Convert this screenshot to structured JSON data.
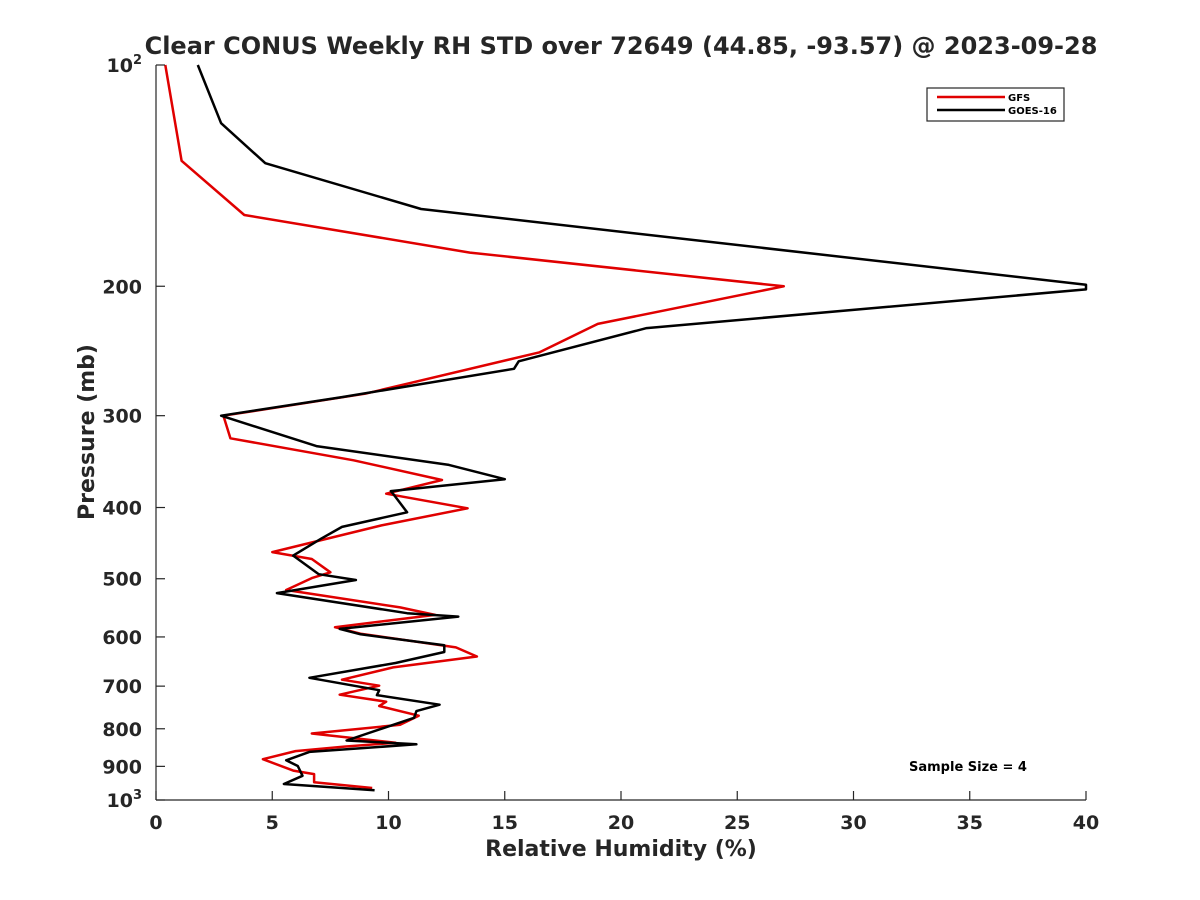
{
  "chart_data": {
    "type": "line",
    "title": "Clear CONUS Weekly RH STD over 72649 (44.85, -93.57) @ 2023-09-28",
    "xlabel": "Relative Humidity (%)",
    "ylabel": "Pressure (mb)",
    "xlim": [
      0,
      40
    ],
    "ylim": [
      100,
      1000
    ],
    "y_scale": "log",
    "y_reversed": true,
    "x_ticks": [
      0,
      5,
      10,
      15,
      20,
      25,
      30,
      35,
      40
    ],
    "y_ticks": [
      {
        "value": 100,
        "label": "10",
        "exp": "2"
      },
      {
        "value": 200,
        "label": "200"
      },
      {
        "value": 300,
        "label": "300"
      },
      {
        "value": 400,
        "label": "400"
      },
      {
        "value": 500,
        "label": "500"
      },
      {
        "value": 600,
        "label": "600"
      },
      {
        "value": 700,
        "label": "700"
      },
      {
        "value": 800,
        "label": "800"
      },
      {
        "value": 900,
        "label": "900"
      },
      {
        "value": 1000,
        "label": "10",
        "exp": "3"
      }
    ],
    "grid": false,
    "legend_position": "top-right",
    "annotation": "Sample Size = 4",
    "series": [
      {
        "name": "GFS",
        "color": "#e00000",
        "points": [
          [
            0.4,
            100
          ],
          [
            1.1,
            135
          ],
          [
            3.8,
            160
          ],
          [
            13.5,
            180
          ],
          [
            27.0,
            200
          ],
          [
            19.0,
            225
          ],
          [
            16.5,
            246
          ],
          [
            9.0,
            280
          ],
          [
            2.9,
            300
          ],
          [
            3.2,
            322
          ],
          [
            8.5,
            345
          ],
          [
            12.3,
            367
          ],
          [
            9.9,
            383
          ],
          [
            13.4,
            401
          ],
          [
            9.7,
            423
          ],
          [
            5.0,
            460
          ],
          [
            6.7,
            470
          ],
          [
            7.5,
            490
          ],
          [
            6.7,
            499
          ],
          [
            5.6,
            518
          ],
          [
            10.5,
            547
          ],
          [
            12.0,
            560
          ],
          [
            7.7,
            582
          ],
          [
            8.8,
            594
          ],
          [
            12.9,
            620
          ],
          [
            13.8,
            638
          ],
          [
            10.2,
            660
          ],
          [
            8.0,
            686
          ],
          [
            9.6,
            699
          ],
          [
            7.9,
            719
          ],
          [
            9.9,
            735
          ],
          [
            9.6,
            745
          ],
          [
            11.3,
            768
          ],
          [
            10.5,
            790
          ],
          [
            6.7,
            812
          ],
          [
            10.3,
            836
          ],
          [
            8.1,
            846
          ],
          [
            6.0,
            858
          ],
          [
            4.6,
            880
          ],
          [
            5.9,
            912
          ],
          [
            6.8,
            922
          ],
          [
            6.8,
            946
          ],
          [
            9.3,
            963
          ]
        ]
      },
      {
        "name": "GOES-16",
        "color": "#000000",
        "points": [
          [
            1.8,
            100
          ],
          [
            2.8,
            120
          ],
          [
            4.7,
            136
          ],
          [
            11.4,
            157
          ],
          [
            40.0,
            199
          ],
          [
            40.0,
            202
          ],
          [
            21.1,
            228
          ],
          [
            15.6,
            253
          ],
          [
            15.4,
            259
          ],
          [
            8.0,
            283
          ],
          [
            2.8,
            300
          ],
          [
            6.9,
            330
          ],
          [
            12.6,
            350
          ],
          [
            15.0,
            366
          ],
          [
            10.1,
            380
          ],
          [
            10.2,
            383
          ],
          [
            10.8,
            406
          ],
          [
            8.0,
            425
          ],
          [
            7.1,
            441
          ],
          [
            5.9,
            465
          ],
          [
            7.0,
            493
          ],
          [
            8.6,
            502
          ],
          [
            5.2,
            523
          ],
          [
            10.8,
            557
          ],
          [
            13.0,
            563
          ],
          [
            7.9,
            585
          ],
          [
            8.8,
            595
          ],
          [
            12.4,
            616
          ],
          [
            12.4,
            629
          ],
          [
            10.3,
            651
          ],
          [
            6.6,
            682
          ],
          [
            9.6,
            709
          ],
          [
            9.5,
            720
          ],
          [
            12.2,
            742
          ],
          [
            11.2,
            757
          ],
          [
            11.1,
            773
          ],
          [
            8.2,
            830
          ],
          [
            11.2,
            840
          ],
          [
            6.6,
            860
          ],
          [
            5.6,
            883
          ],
          [
            6.1,
            899
          ],
          [
            6.3,
            927
          ],
          [
            5.5,
            951
          ],
          [
            9.4,
            970
          ]
        ]
      }
    ]
  }
}
